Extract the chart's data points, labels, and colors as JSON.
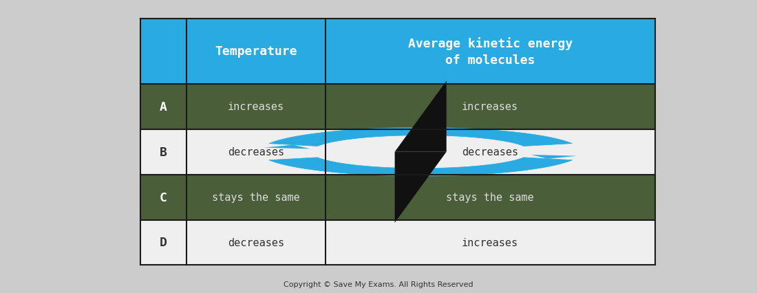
{
  "header_col1_text": "Temperature",
  "header_col2_text": "Average kinetic energy\nof molecules",
  "header_text_color": "#FFFFFF",
  "row_labels": [
    "A",
    "B",
    "C",
    "D"
  ],
  "col1_values": [
    "increases",
    "decreases",
    "stays the same",
    "decreases"
  ],
  "col2_values": [
    "increases",
    "decreases",
    "stays the same",
    "increases"
  ],
  "header_bg": "#29ABE2",
  "row_bg_odd": "#4A5E3A",
  "row_bg_even": "#EFEFEF",
  "border_color": "#1a1a1a",
  "outer_bg": "#CCCCCC",
  "copyright_text": "Copyright © Save My Exams. All Rights Reserved",
  "copyright_fontsize": 8,
  "watermark_color_cyan": "#29ABE2",
  "watermark_color_black": "#111111",
  "fig_width": 11.0,
  "fig_height": 4.27
}
